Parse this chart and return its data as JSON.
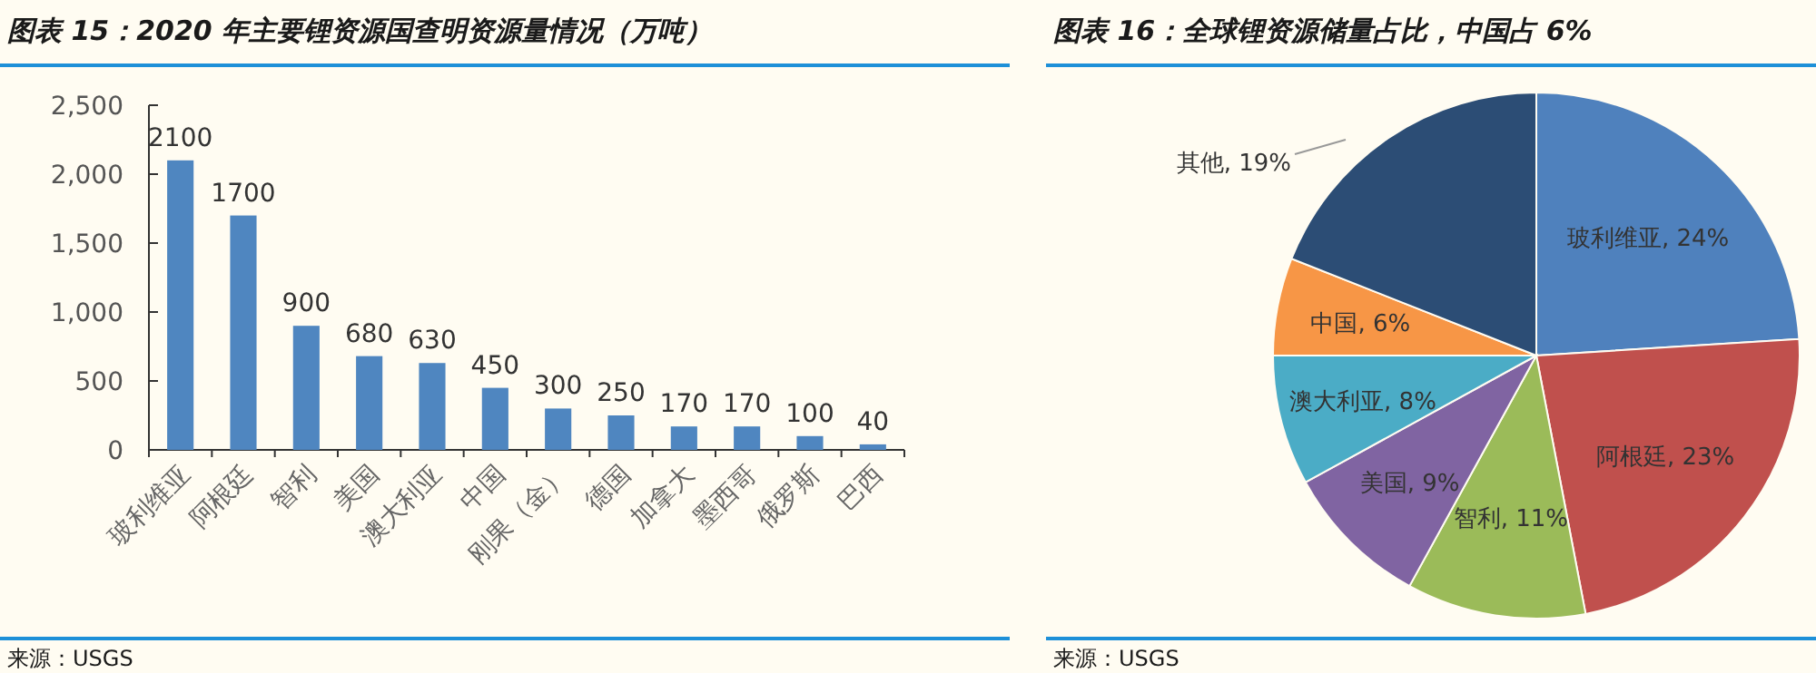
{
  "chart_data": [
    {
      "type": "bar",
      "title": "图表 15：2020 年主要锂资源国查明资源量情况（万吨）",
      "categories": [
        "玻利维亚",
        "阿根廷",
        "智利",
        "美国",
        "澳大利亚",
        "中国",
        "刚果（金）",
        "德国",
        "加拿大",
        "墨西哥",
        "俄罗斯",
        "巴西"
      ],
      "values": [
        2100,
        1700,
        900,
        680,
        630,
        450,
        300,
        250,
        170,
        170,
        100,
        40
      ],
      "color": "#4f86c0",
      "ylim": [
        0,
        2500
      ],
      "yticks": [
        {
          "value": 0,
          "label": "0"
        },
        {
          "value": 500,
          "label": "500"
        },
        {
          "value": 1000,
          "label": "1,000"
        },
        {
          "value": 1500,
          "label": "1,500"
        },
        {
          "value": 2000,
          "label": "2,000"
        },
        {
          "value": 2500,
          "label": "2,500"
        }
      ],
      "data_labels": true,
      "grid": false,
      "annotations": [
        "来源：USGS"
      ]
    },
    {
      "type": "pie",
      "title": "图表 16：全球锂资源储量占比，中国占 6%",
      "categories": [
        "玻利维亚",
        "阿根廷",
        "智利",
        "美国",
        "澳大利亚",
        "中国",
        "其他"
      ],
      "values": [
        24,
        23,
        11,
        9,
        8,
        6,
        19
      ],
      "colors": [
        "#4f81bd",
        "#c0504d",
        "#9bbb59",
        "#8064a2",
        "#4bacc6",
        "#f79646",
        "#2c4d75"
      ],
      "value_labels": [
        ", 24%",
        ", 23%",
        ", 11%",
        ", 9%",
        ", 8%",
        ", 6%",
        ", 19%"
      ],
      "annotations": [
        "来源：USGS"
      ]
    }
  ]
}
